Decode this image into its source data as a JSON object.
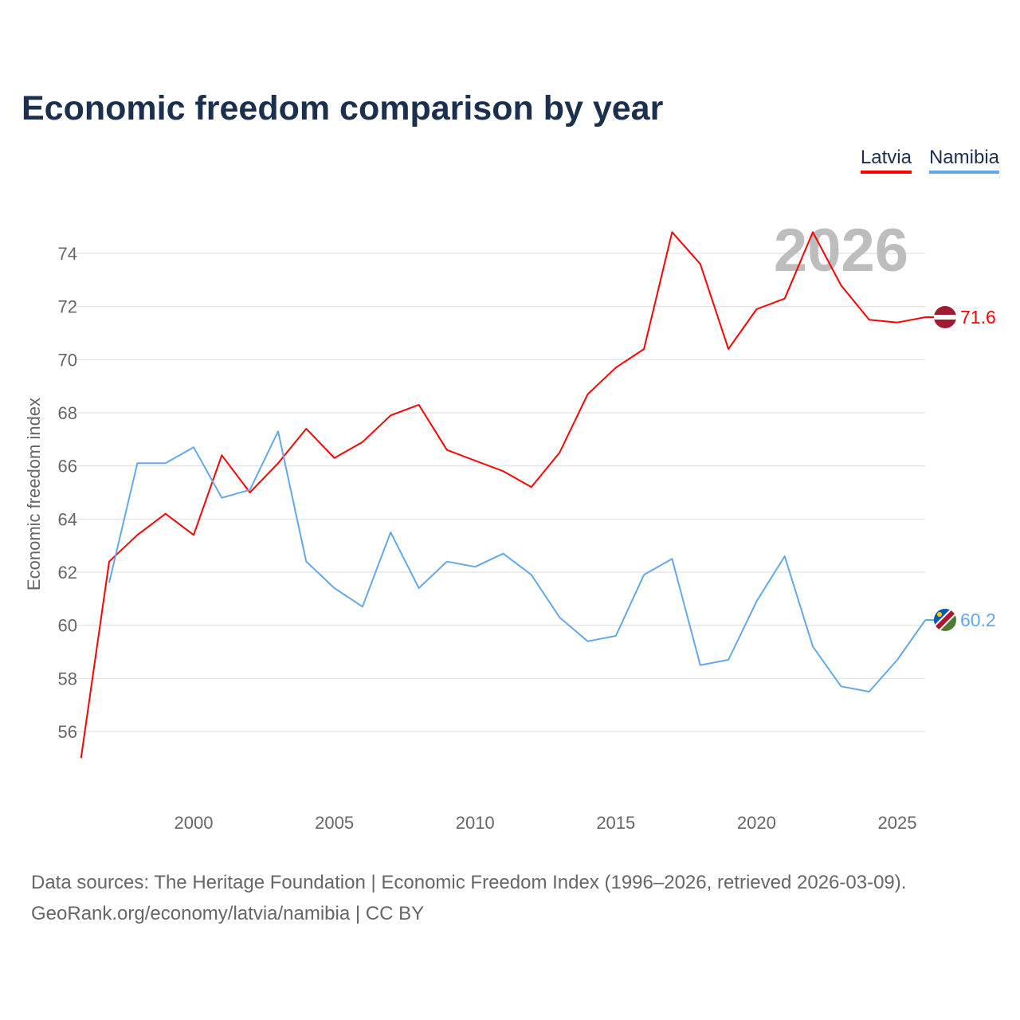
{
  "chart_data": {
    "type": "line",
    "title": "Economic freedom comparison by year",
    "xlabel": "",
    "ylabel": "Economic freedom index",
    "xlim": [
      1996,
      2026
    ],
    "ylim": [
      54,
      75.5
    ],
    "yticks": [
      56,
      58,
      60,
      62,
      64,
      66,
      68,
      70,
      72,
      74
    ],
    "xticks": [
      2000,
      2005,
      2010,
      2015,
      2020,
      2025
    ],
    "grid": true,
    "legend_position": "top-right",
    "year_watermark": "2026",
    "series": [
      {
        "name": "Latvia",
        "color": "#ff0000",
        "end_label": "71.6",
        "x": [
          1996,
          1997,
          1998,
          1999,
          2000,
          2001,
          2002,
          2003,
          2004,
          2005,
          2006,
          2007,
          2008,
          2009,
          2010,
          2011,
          2012,
          2013,
          2014,
          2015,
          2016,
          2017,
          2018,
          2019,
          2020,
          2021,
          2022,
          2023,
          2024,
          2025,
          2026
        ],
        "values": [
          55.0,
          62.4,
          63.4,
          64.2,
          63.4,
          66.4,
          65.0,
          66.1,
          67.4,
          66.3,
          66.9,
          67.9,
          68.3,
          66.6,
          66.2,
          65.8,
          65.2,
          66.5,
          68.7,
          69.7,
          70.4,
          74.8,
          73.6,
          70.4,
          71.9,
          72.3,
          74.8,
          72.8,
          71.5,
          71.4,
          71.6
        ]
      },
      {
        "name": "Namibia",
        "color": "#62a8e8",
        "end_label": "60.2",
        "x": [
          1997,
          1998,
          1999,
          2000,
          2001,
          2002,
          2003,
          2004,
          2005,
          2006,
          2007,
          2008,
          2009,
          2010,
          2011,
          2012,
          2013,
          2014,
          2015,
          2016,
          2017,
          2018,
          2019,
          2020,
          2021,
          2022,
          2023,
          2024,
          2025,
          2026
        ],
        "values": [
          61.6,
          66.1,
          66.1,
          66.7,
          64.8,
          65.1,
          67.3,
          62.4,
          61.4,
          60.7,
          63.5,
          61.4,
          62.4,
          62.2,
          62.7,
          61.9,
          60.3,
          59.4,
          59.6,
          61.9,
          62.5,
          58.5,
          58.7,
          60.9,
          62.6,
          59.2,
          57.7,
          57.5,
          58.7,
          60.2
        ]
      }
    ]
  },
  "footer": {
    "source_line": "Data sources: The Heritage Foundation | Economic Freedom Index (1996–2026, retrieved 2026-03-09).",
    "credit_line": "GeoRank.org/economy/latvia/namibia | CC BY"
  }
}
